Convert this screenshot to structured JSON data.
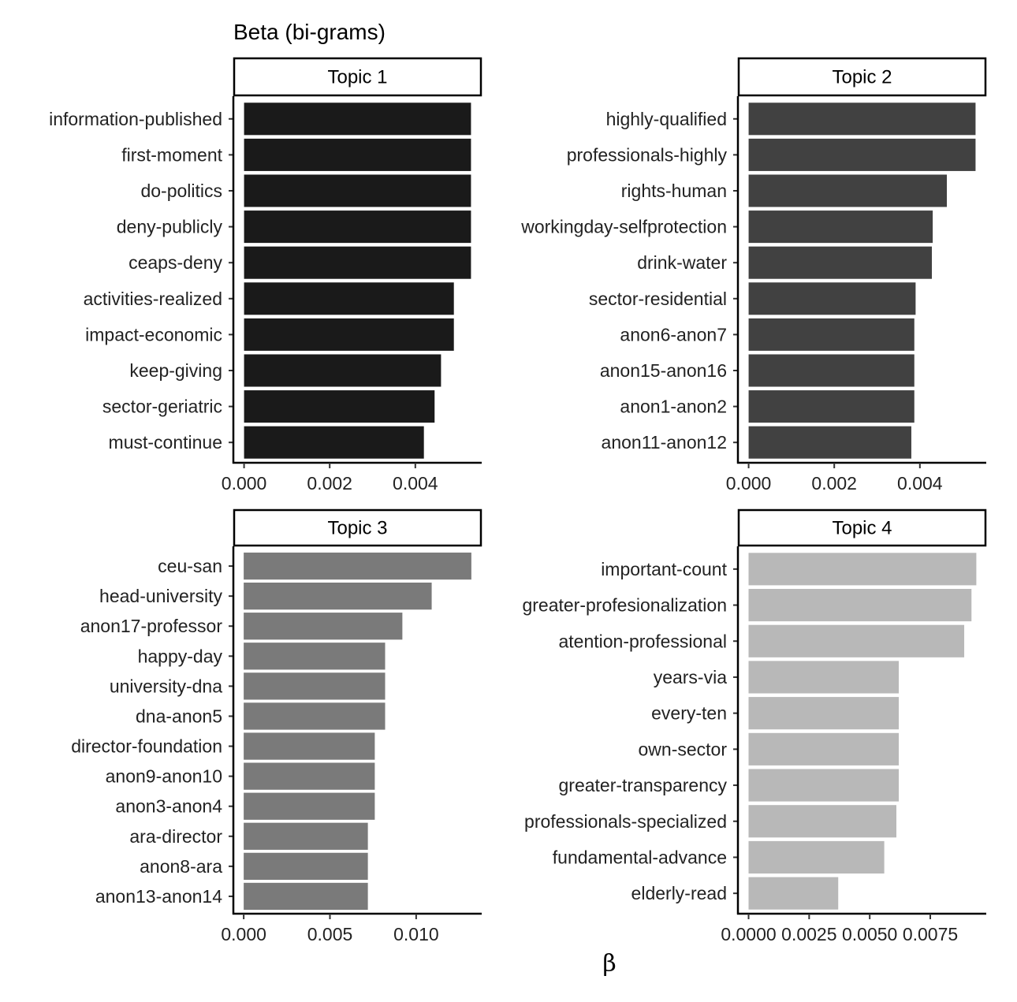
{
  "chart_data": {
    "type": "bar",
    "orientation": "horizontal",
    "title": "Beta (bi-grams)",
    "xlabel": "β",
    "ylabel": "",
    "grid": false,
    "facets": [
      {
        "name": "Topic 1",
        "color": "#1a1a1a",
        "categories": [
          "information-published",
          "first-moment",
          "do-politics",
          "deny-publicly",
          "ceaps-deny",
          "activities-realized",
          "impact-economic",
          "keep-giving",
          "sector-geriatric",
          "must-continue"
        ],
        "values": [
          0.0053,
          0.0053,
          0.0053,
          0.0053,
          0.0053,
          0.0049,
          0.0049,
          0.0046,
          0.00445,
          0.0042
        ],
        "xlim": [
          -0.00025,
          0.00555
        ],
        "ticks": [
          0,
          0.002,
          0.004
        ],
        "tick_labels": [
          "0.000",
          "0.002",
          "0.004"
        ]
      },
      {
        "name": "Topic 2",
        "color": "#414141",
        "categories": [
          "highly-qualified",
          "professionals-highly",
          "rights-human",
          "workingday-selfprotection",
          "drink-water",
          "sector-residential",
          "anon6-anon7",
          "anon15-anon16",
          "anon1-anon2",
          "anon11-anon12"
        ],
        "values": [
          0.0053,
          0.0053,
          0.00463,
          0.0043,
          0.00428,
          0.0039,
          0.00387,
          0.00387,
          0.00387,
          0.0038
        ],
        "xlim": [
          -0.00025,
          0.00555
        ],
        "ticks": [
          0,
          0.002,
          0.004
        ],
        "tick_labels": [
          "0.000",
          "0.002",
          "0.004"
        ]
      },
      {
        "name": "Topic 3",
        "color": "#7a7a7a",
        "categories": [
          "ceu-san",
          "head-university",
          "anon17-professor",
          "happy-day",
          "university-dna",
          "dna-anon5",
          "director-foundation",
          "anon9-anon10",
          "anon3-anon4",
          "ara-director",
          "anon8-ara",
          "anon13-anon14"
        ],
        "values": [
          0.0132,
          0.0109,
          0.0092,
          0.0082,
          0.0082,
          0.0082,
          0.0076,
          0.0076,
          0.0076,
          0.0072,
          0.0072,
          0.0072
        ],
        "xlim": [
          -0.0006,
          0.0138
        ],
        "ticks": [
          0,
          0.005,
          0.01
        ],
        "tick_labels": [
          "0.000",
          "0.005",
          "0.010"
        ]
      },
      {
        "name": "Topic 4",
        "color": "#b8b8b8",
        "categories": [
          "important-count",
          "greater-profesionalization",
          "atention-professional",
          "years-via",
          "every-ten",
          "own-sector",
          "greater-transparency",
          "professionals-specialized",
          "fundamental-advance",
          "elderly-read"
        ],
        "values": [
          0.0094,
          0.0092,
          0.0089,
          0.0062,
          0.0062,
          0.0062,
          0.0062,
          0.0061,
          0.0056,
          0.0037
        ],
        "xlim": [
          -0.00044,
          0.00981
        ],
        "ticks": [
          0,
          0.0025,
          0.005,
          0.0075
        ],
        "tick_labels": [
          "0.0000",
          "0.0025",
          "0.0050",
          "0.0075"
        ]
      }
    ]
  }
}
